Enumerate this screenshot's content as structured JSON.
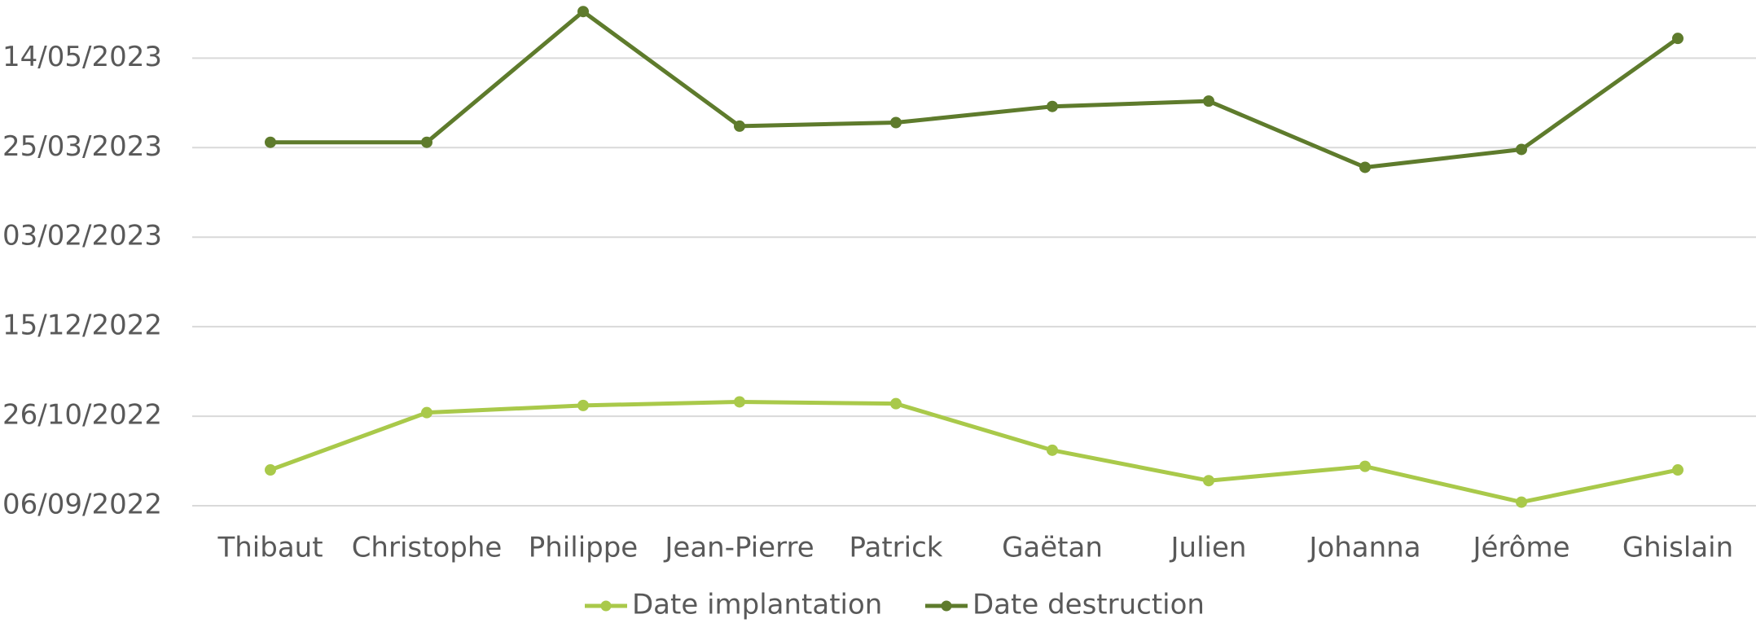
{
  "chart_data": {
    "type": "line",
    "categories": [
      "Thibaut",
      "Christophe",
      "Philippe",
      "Jean-Pierre",
      "Patrick",
      "Gaëtan",
      "Julien",
      "Johanna",
      "Jérôme",
      "Ghislain"
    ],
    "series": [
      {
        "name": "Date implantation",
        "color": "#a9c94a",
        "values": [
          "2022-09-26",
          "2022-10-28",
          "2022-11-01",
          "2022-11-03",
          "2022-11-02",
          "2022-10-07",
          "2022-09-20",
          "2022-09-28",
          "2022-09-08",
          "2022-09-26"
        ]
      },
      {
        "name": "Date destruction",
        "color": "#5e7b2c",
        "values": [
          "2023-03-28",
          "2023-03-28",
          "2023-06-09",
          "2023-04-06",
          "2023-04-08",
          "2023-04-17",
          "2023-04-20",
          "2023-03-14",
          "2023-03-24",
          "2023-05-25"
        ]
      }
    ],
    "ylim": [
      "2022-09-06",
      "2023-06-15"
    ],
    "yticks": [
      {
        "value": "2022-09-06",
        "label": "06/09/2022"
      },
      {
        "value": "2022-10-26",
        "label": "26/10/2022"
      },
      {
        "value": "2022-12-15",
        "label": "15/12/2022"
      },
      {
        "value": "2023-02-03",
        "label": "03/02/2023"
      },
      {
        "value": "2023-03-25",
        "label": "25/03/2023"
      },
      {
        "value": "2023-05-14",
        "label": "14/05/2023"
      }
    ],
    "grid": true,
    "legend": "bottom"
  }
}
